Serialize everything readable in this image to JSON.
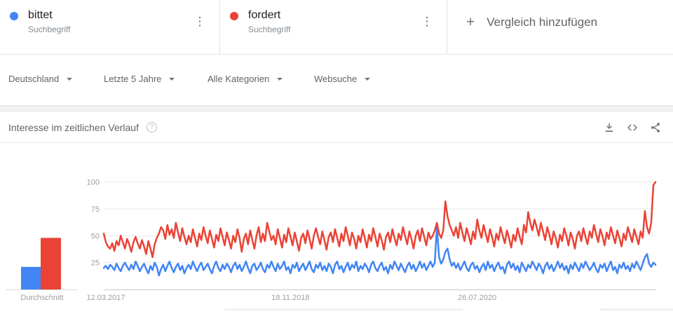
{
  "colors": {
    "bittet": "#4285f4",
    "fordert": "#ea4335",
    "icon_gray": "#757575",
    "tick_gray": "#9e9e9e",
    "gridline": "#e9e9e9",
    "axis_line": "#c7c7c7"
  },
  "icons": {
    "kebab": "⋮",
    "plus": "+",
    "help": "?"
  },
  "terms": [
    {
      "label": "bittet",
      "type": "Suchbegriff"
    },
    {
      "label": "fordert",
      "type": "Suchbegriff"
    }
  ],
  "add_comparison": {
    "label": "Vergleich hinzufügen"
  },
  "filters": [
    {
      "label": "Deutschland"
    },
    {
      "label": "Letzte 5 Jahre"
    },
    {
      "label": "Alle Kategorien"
    },
    {
      "label": "Websuche"
    }
  ],
  "section": {
    "title": "Interesse im zeitlichen Verlauf"
  },
  "chart_data": {
    "type": "line",
    "title": "Interesse im zeitlichen Verlauf",
    "xlabel": "",
    "ylabel": "",
    "ylim": [
      0,
      100
    ],
    "y_ticks": [
      25,
      50,
      75,
      100
    ],
    "x_ticks": [
      "12.03.2017",
      "18.11.2018",
      "26.07.2020"
    ],
    "x_tick_positions": [
      0,
      88,
      176
    ],
    "grid": "horizontal",
    "legend_position": "none",
    "average": {
      "label": "Durchschnitt",
      "bittet": 21,
      "fordert": 48
    },
    "series": [
      {
        "name": "bittet",
        "color": "#4285f4",
        "values": [
          20,
          22,
          19,
          23,
          21,
          18,
          24,
          20,
          17,
          22,
          25,
          21,
          18,
          23,
          19,
          26,
          22,
          17,
          21,
          24,
          19,
          15,
          22,
          18,
          25,
          21,
          13,
          19,
          23,
          17,
          22,
          26,
          20,
          16,
          21,
          24,
          18,
          22,
          15,
          20,
          23,
          19,
          26,
          21,
          17,
          22,
          25,
          18,
          21,
          24,
          19,
          15,
          22,
          26,
          20,
          17,
          23,
          19,
          24,
          21,
          16,
          22,
          25,
          19,
          23,
          17,
          21,
          26,
          20,
          15,
          22,
          24,
          18,
          21,
          25,
          19,
          16,
          23,
          20,
          26,
          21,
          17,
          24,
          19,
          22,
          26,
          18,
          21,
          15,
          23,
          20,
          25,
          17,
          21,
          24,
          18,
          22,
          26,
          19,
          16,
          23,
          20,
          25,
          18,
          22,
          17,
          24,
          21,
          15,
          23,
          26,
          19,
          22,
          16,
          21,
          25,
          18,
          23,
          20,
          26,
          17,
          22,
          19,
          24,
          21,
          16,
          23,
          26,
          20,
          17,
          22,
          25,
          18,
          21,
          15,
          23,
          19,
          26,
          22,
          18,
          24,
          20,
          16,
          22,
          25,
          19,
          23,
          17,
          21,
          26,
          20,
          24,
          18,
          22,
          26,
          21,
          25,
          58,
          30,
          24,
          28,
          35,
          38,
          28,
          22,
          25,
          20,
          24,
          18,
          22,
          26,
          20,
          17,
          23,
          25,
          19,
          22,
          16,
          21,
          24,
          18,
          26,
          20,
          23,
          17,
          22,
          25,
          19,
          21,
          15,
          23,
          26,
          20,
          24,
          18,
          22,
          16,
          25,
          21,
          17,
          23,
          20,
          26,
          22,
          18,
          24,
          21,
          15,
          22,
          25,
          19,
          23,
          17,
          21,
          26,
          20,
          24,
          18,
          22,
          15,
          23,
          19,
          25,
          21,
          17,
          24,
          20,
          26,
          22,
          18,
          21,
          25,
          19,
          16,
          23,
          20,
          24,
          17,
          22,
          26,
          18,
          21,
          15,
          23,
          20,
          25,
          19,
          22,
          17,
          24,
          20,
          26,
          22,
          18,
          24,
          30,
          33,
          24,
          21,
          25,
          23
        ]
      },
      {
        "name": "fordert",
        "color": "#ea4335",
        "values": [
          52,
          44,
          40,
          38,
          43,
          36,
          45,
          41,
          50,
          44,
          38,
          47,
          42,
          35,
          44,
          49,
          43,
          38,
          46,
          40,
          33,
          45,
          38,
          30,
          42,
          48,
          52,
          58,
          55,
          47,
          60,
          51,
          56,
          48,
          62,
          53,
          45,
          57,
          49,
          42,
          50,
          44,
          56,
          48,
          40,
          52,
          46,
          58,
          50,
          43,
          55,
          47,
          39,
          51,
          45,
          57,
          49,
          41,
          53,
          46,
          38,
          50,
          44,
          56,
          48,
          35,
          47,
          52,
          42,
          55,
          46,
          38,
          50,
          58,
          44,
          52,
          45,
          62,
          54,
          46,
          50,
          42,
          56,
          48,
          39,
          51,
          44,
          57,
          49,
          41,
          53,
          45,
          36,
          48,
          52,
          43,
          55,
          47,
          38,
          50,
          57,
          49,
          42,
          54,
          46,
          37,
          49,
          53,
          44,
          56,
          48,
          40,
          52,
          45,
          58,
          50,
          41,
          53,
          47,
          38,
          50,
          44,
          56,
          48,
          39,
          51,
          45,
          57,
          49,
          40,
          52,
          46,
          37,
          49,
          53,
          44,
          56,
          48,
          41,
          52,
          46,
          58,
          50,
          42,
          54,
          47,
          38,
          50,
          55,
          45,
          57,
          49,
          41,
          53,
          47,
          50,
          55,
          62,
          52,
          48,
          55,
          82,
          68,
          60,
          55,
          50,
          58,
          48,
          62,
          53,
          45,
          57,
          50,
          42,
          54,
          47,
          65,
          55,
          48,
          60,
          52,
          44,
          56,
          49,
          40,
          52,
          46,
          58,
          50,
          43,
          55,
          48,
          39,
          51,
          45,
          57,
          49,
          42,
          60,
          53,
          72,
          62,
          55,
          65,
          58,
          50,
          62,
          54,
          46,
          58,
          51,
          42,
          54,
          48,
          39,
          51,
          45,
          57,
          50,
          41,
          53,
          47,
          38,
          50,
          54,
          45,
          57,
          49,
          42,
          54,
          48,
          60,
          52,
          44,
          56,
          50,
          41,
          53,
          47,
          58,
          50,
          43,
          55,
          48,
          40,
          52,
          46,
          58,
          51,
          44,
          56,
          49,
          42,
          54,
          48,
          73,
          58,
          52,
          62,
          97,
          100
        ]
      }
    ]
  }
}
